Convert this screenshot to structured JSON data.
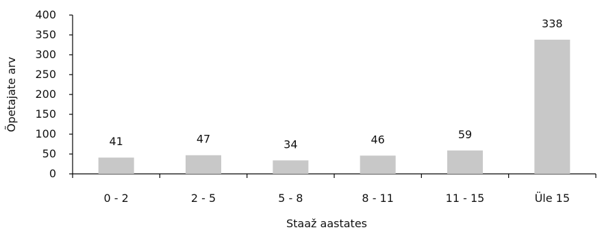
{
  "chart_data": {
    "type": "bar",
    "title": "",
    "xlabel": "Staaž aastates",
    "ylabel": "Õpetajate arv",
    "categories": [
      "0 - 2",
      "2 - 5",
      "5 - 8",
      "8 - 11",
      "11 - 15",
      "Üle 15"
    ],
    "values": [
      41,
      47,
      34,
      46,
      59,
      338
    ],
    "data_labels": [
      "41",
      "47",
      "34",
      "46",
      "59",
      "338"
    ],
    "ylim": [
      0,
      400
    ],
    "yticks": [
      0,
      50,
      100,
      150,
      200,
      250,
      300,
      350,
      400
    ],
    "ytick_labels": [
      "0",
      "50",
      "100",
      "150",
      "200",
      "250",
      "300",
      "350",
      "400"
    ],
    "grid": false,
    "legend": "none",
    "bar_color": "#c8c8c8",
    "axis_color": "#000000"
  }
}
